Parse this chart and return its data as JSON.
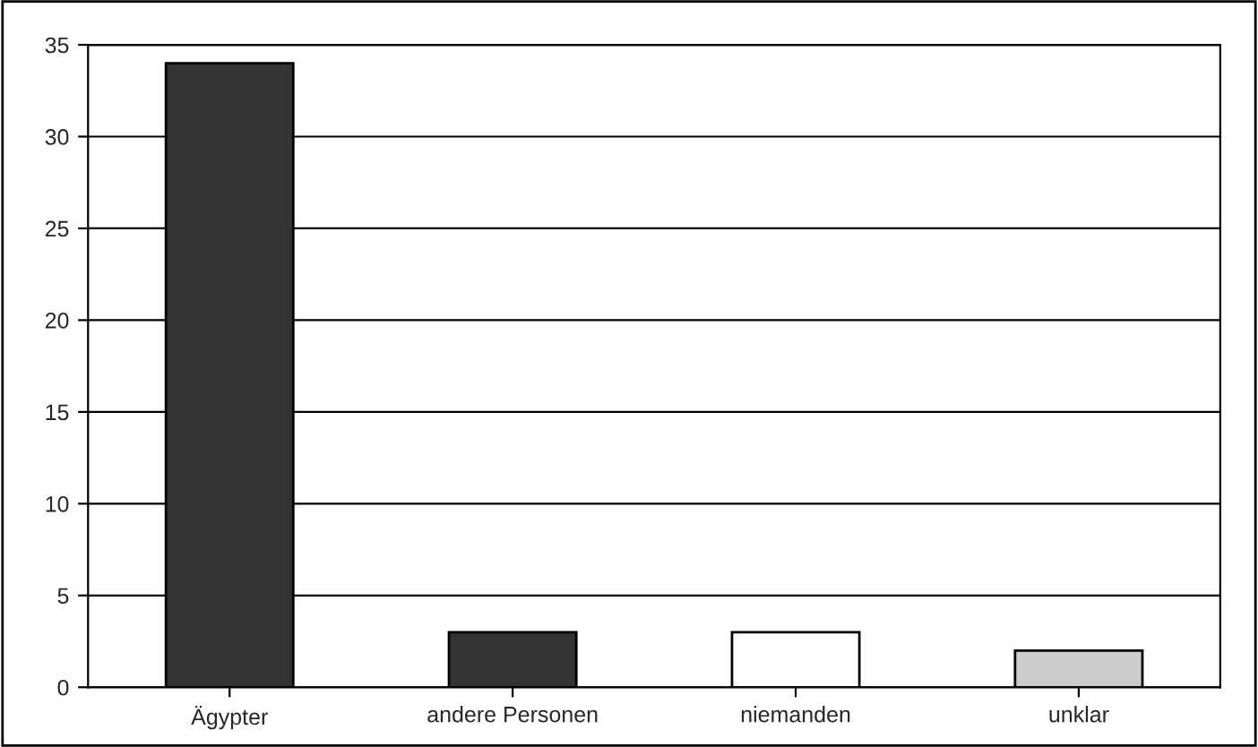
{
  "chart_data": {
    "type": "bar",
    "categories": [
      "Ägypter",
      "andere Personen",
      "niemanden",
      "unklar"
    ],
    "values": [
      34,
      3,
      3,
      2
    ],
    "colors": [
      "#333333",
      "#333333",
      "#ffffff",
      "#cccccc"
    ],
    "ylim": [
      0,
      35
    ],
    "yticks": [
      0,
      5,
      10,
      15,
      20,
      25,
      30,
      35
    ],
    "grid": "y"
  }
}
